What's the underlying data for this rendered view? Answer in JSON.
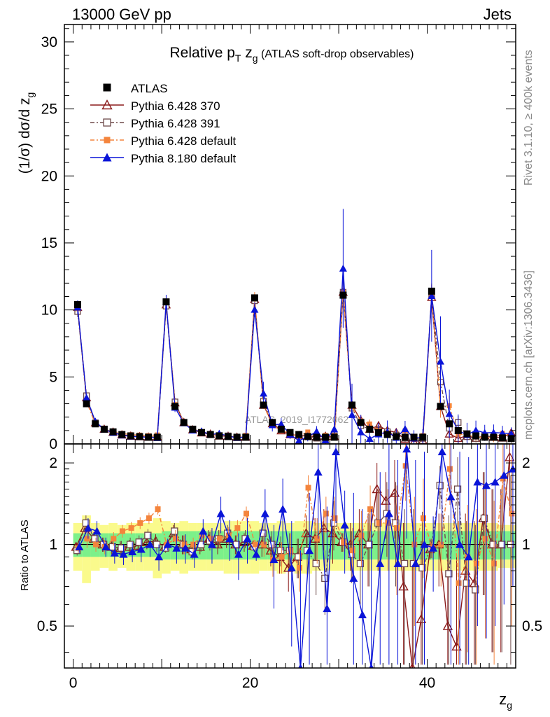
{
  "header": {
    "left": "13000 GeV pp",
    "right": "Jets"
  },
  "title": {
    "main": "Relative p",
    "sub": "T",
    "mid": " z",
    "sub2": "g",
    "rest": " (ATLAS soft-drop observables)"
  },
  "side_labels": {
    "rivet": "Rivet 3.1.10, ≥ 400k events",
    "mcplots": "mcplots.cern.ch [arXiv:1306.3436]"
  },
  "watermark": "ATLAS_2019_I1772062",
  "axes": {
    "ylabel_main_prefix": "(1/σ) dσ/d z",
    "ylabel_main_sub": "g",
    "ylabel_ratio": "Ratio to ATLAS",
    "xlabel": "z",
    "xlabel_sub": "g",
    "main_ticks": [
      "0",
      "5",
      "10",
      "15",
      "20",
      "25",
      "30"
    ],
    "ratio_ticks": [
      "0.5",
      "1",
      "2"
    ],
    "x_ticks": [
      "0",
      "20",
      "40"
    ]
  },
  "colors": {
    "atlas": "#000000",
    "p370": "#8b1a1a",
    "p391": "#6e4a4a",
    "p6def": "#f4843c",
    "p8def": "#0a14d8",
    "band_inner": "#7cf08a",
    "band_outer": "#fafa8c"
  },
  "chart_data": {
    "type": "line",
    "xlim": [
      -1,
      50
    ],
    "ylim_main": [
      0,
      31.3
    ],
    "ylim_ratio": [
      0.35,
      2.35
    ],
    "ratio_log_scale": true,
    "x": [
      0.5,
      1.5,
      2.5,
      3.5,
      4.5,
      5.5,
      6.5,
      7.5,
      8.5,
      9.5,
      10.5,
      11.5,
      12.5,
      13.5,
      14.5,
      15.5,
      16.5,
      17.5,
      18.5,
      19.5,
      20.5,
      21.5,
      22.5,
      23.5,
      24.5,
      25.5,
      26.5,
      27.5,
      28.5,
      29.5,
      30.5,
      31.5,
      32.5,
      33.5,
      34.5,
      35.5,
      36.5,
      37.5,
      38.5,
      39.5,
      40.5,
      41.5,
      42.5,
      43.5,
      44.5,
      45.5,
      46.5,
      47.5,
      48.5,
      49.5
    ],
    "series": [
      {
        "name": "ATLAS",
        "marker": "square",
        "values": [
          10.4,
          3.0,
          1.5,
          1.1,
          0.9,
          0.7,
          0.6,
          0.55,
          0.5,
          0.5,
          10.6,
          2.8,
          1.6,
          1.1,
          0.85,
          0.7,
          0.6,
          0.55,
          0.5,
          0.5,
          10.9,
          2.9,
          1.6,
          1.1,
          0.85,
          0.7,
          0.55,
          0.5,
          0.5,
          0.5,
          11.1,
          2.9,
          1.6,
          1.1,
          0.85,
          0.7,
          0.55,
          0.5,
          0.5,
          0.5,
          11.4,
          2.8,
          1.5,
          1.0,
          0.75,
          0.6,
          0.5,
          0.5,
          0.45,
          0.4
        ],
        "ratio_band_inner": [
          0.1,
          0.1,
          0.1,
          0.1,
          0.1,
          0.1,
          0.1,
          0.1,
          0.1,
          0.1,
          0.12,
          0.12,
          0.12,
          0.12,
          0.12,
          0.12,
          0.12,
          0.12,
          0.12,
          0.12,
          0.12,
          0.12,
          0.12,
          0.12,
          0.12,
          0.12,
          0.12,
          0.12,
          0.12,
          0.12,
          0.12,
          0.12,
          0.12,
          0.12,
          0.12,
          0.12,
          0.12,
          0.12,
          0.12,
          0.12,
          0.12,
          0.12,
          0.12,
          0.12,
          0.12,
          0.12,
          0.12,
          0.12,
          0.12,
          0.12
        ],
        "ratio_band_outer": [
          0.2,
          0.28,
          0.2,
          0.18,
          0.2,
          0.18,
          0.2,
          0.2,
          0.2,
          0.25,
          0.22,
          0.2,
          0.22,
          0.2,
          0.2,
          0.2,
          0.2,
          0.22,
          0.22,
          0.22,
          0.22,
          0.2,
          0.2,
          0.22,
          0.2,
          0.22,
          0.22,
          0.2,
          0.2,
          0.2,
          0.2,
          0.2,
          0.2,
          0.2,
          0.2,
          0.2,
          0.2,
          0.2,
          0.2,
          0.2,
          0.2,
          0.2,
          0.2,
          0.2,
          0.2,
          0.2,
          0.2,
          0.2,
          0.18,
          0.18
        ]
      },
      {
        "name": "Pythia 6.428 370",
        "marker": "triangle-open",
        "ratio": [
          0.98,
          1.15,
          1.05,
          1.0,
          0.98,
          0.97,
          0.98,
          0.99,
          1.02,
          1.03,
          0.98,
          1.1,
          1.0,
          0.96,
          0.98,
          1.05,
          1.0,
          1.05,
          1.0,
          1.02,
          0.99,
          1.0,
          0.95,
          0.9,
          0.82,
          0.9,
          1.1,
          1.05,
          1.15,
          1.1,
          1.02,
          1.0,
          1.1,
          1.0,
          1.6,
          1.45,
          1.55,
          0.7,
          0.35,
          0.53,
          0.96,
          1.0,
          0.5,
          0.42,
          0.8,
          0.72,
          1.25,
          1.0,
          1.0,
          2.1
        ],
        "errors": [
          0.04,
          0.08,
          0.06,
          0.06,
          0.06,
          0.06,
          0.06,
          0.06,
          0.06,
          0.06,
          0.04,
          0.08,
          0.08,
          0.06,
          0.06,
          0.08,
          0.08,
          0.08,
          0.08,
          0.08,
          0.04,
          0.1,
          0.12,
          0.12,
          0.15,
          0.15,
          0.18,
          0.2,
          0.2,
          0.25,
          0.08,
          0.2,
          0.25,
          0.3,
          0.4,
          0.4,
          0.5,
          0.5,
          0.5,
          0.5,
          0.08,
          0.3,
          0.5,
          0.5,
          0.5,
          0.5,
          0.6,
          0.6,
          0.6,
          0.8
        ]
      },
      {
        "name": "Pythia 6.428 391",
        "marker": "square-open",
        "ratio": [
          0.95,
          1.2,
          1.05,
          1.0,
          0.98,
          0.97,
          1.0,
          1.02,
          1.08,
          1.0,
          0.97,
          1.12,
          1.0,
          0.94,
          1.0,
          1.03,
          1.05,
          1.1,
          1.0,
          1.05,
          0.98,
          1.1,
          1.0,
          0.95,
          0.95,
          0.9,
          0.95,
          0.85,
          0.75,
          1.2,
          1.02,
          0.92,
          0.85,
          1.0,
          1.2,
          1.3,
          1.2,
          0.85,
          0.85,
          0.82,
          0.97,
          1.65,
          0.78,
          1.6,
          0.72,
          0.68,
          1.25,
          1.0,
          1.0,
          1.0
        ],
        "errors": [
          0.04,
          0.08,
          0.06,
          0.06,
          0.06,
          0.06,
          0.06,
          0.06,
          0.06,
          0.06,
          0.04,
          0.08,
          0.08,
          0.06,
          0.06,
          0.08,
          0.08,
          0.08,
          0.08,
          0.08,
          0.04,
          0.1,
          0.12,
          0.12,
          0.15,
          0.15,
          0.18,
          0.2,
          0.2,
          0.25,
          0.08,
          0.2,
          0.25,
          0.3,
          0.4,
          0.4,
          0.5,
          0.5,
          0.5,
          0.5,
          0.08,
          0.3,
          0.5,
          0.5,
          0.5,
          0.5,
          0.6,
          0.6,
          0.6,
          0.8
        ]
      },
      {
        "name": "Pythia 6.428 default",
        "marker": "square-filled",
        "ratio": [
          0.97,
          1.05,
          1.0,
          0.98,
          1.05,
          1.12,
          1.15,
          1.2,
          1.25,
          1.35,
          1.0,
          1.05,
          1.0,
          1.0,
          1.08,
          1.05,
          1.05,
          1.08,
          1.15,
          1.3,
          1.0,
          1.0,
          0.88,
          0.9,
          0.95,
          0.82,
          1.62,
          1.05,
          1.3,
          1.25,
          1.02,
          0.95,
          1.08,
          1.35,
          1.2,
          1.2,
          1.15,
          1.95,
          1.0,
          1.25,
          0.97,
          1.0,
          1.9,
          0.72,
          0.9,
          0.85,
          1.05,
          0.85,
          1.75,
          1.3
        ],
        "errors": [
          0.04,
          0.08,
          0.06,
          0.06,
          0.06,
          0.06,
          0.06,
          0.06,
          0.06,
          0.06,
          0.04,
          0.08,
          0.08,
          0.06,
          0.06,
          0.08,
          0.08,
          0.08,
          0.08,
          0.08,
          0.04,
          0.1,
          0.12,
          0.12,
          0.15,
          0.15,
          0.18,
          0.2,
          0.2,
          0.25,
          0.08,
          0.2,
          0.25,
          0.3,
          0.4,
          0.4,
          0.5,
          0.5,
          0.5,
          0.5,
          0.08,
          0.3,
          0.5,
          0.5,
          0.5,
          0.5,
          0.6,
          0.6,
          0.6,
          0.8
        ]
      },
      {
        "name": "Pythia 8.180 default",
        "marker": "triangle-filled",
        "ratio": [
          0.98,
          1.15,
          1.12,
          0.98,
          0.93,
          0.92,
          0.94,
          0.96,
          1.0,
          0.9,
          1.0,
          0.97,
          0.97,
          0.92,
          1.12,
          1.0,
          1.3,
          1.05,
          0.92,
          1.05,
          0.92,
          1.3,
          0.88,
          1.35,
          0.82,
          0.35,
          0.95,
          1.85,
          0.58,
          2.2,
          1.18,
          0.75,
          0.55,
          0.35,
          0.85,
          1.3,
          0.85,
          2.25,
          0.85,
          1.0,
          0.97,
          2.2,
          1.5,
          1.0,
          0.9,
          1.7,
          1.65,
          1.7,
          1.8,
          1.9
        ],
        "errors": [
          0.05,
          0.1,
          0.1,
          0.08,
          0.08,
          0.08,
          0.08,
          0.1,
          0.1,
          0.1,
          0.05,
          0.12,
          0.12,
          0.1,
          0.12,
          0.15,
          0.2,
          0.18,
          0.18,
          0.2,
          0.05,
          0.3,
          0.3,
          0.4,
          0.4,
          0.6,
          0.6,
          0.8,
          0.8,
          1.0,
          0.4,
          0.8,
          0.8,
          1.0,
          1.0,
          1.2,
          1.2,
          1.2,
          1.2,
          1.2,
          0.3,
          1.2,
          1.2,
          1.2,
          1.2,
          1.2,
          1.2,
          1.2,
          1.2,
          1.2
        ]
      }
    ]
  }
}
